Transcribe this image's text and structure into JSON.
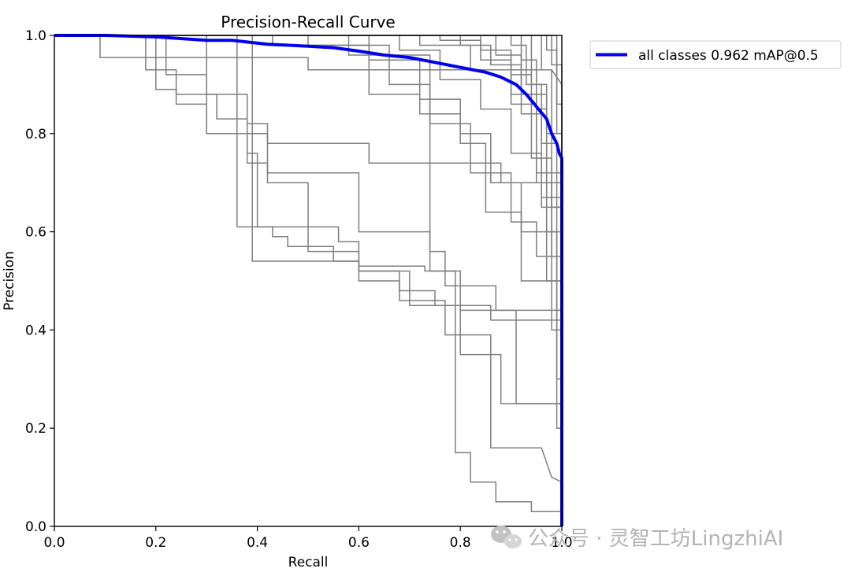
{
  "chart_data": {
    "type": "line",
    "title": "Precision-Recall Curve",
    "xlabel": "Recall",
    "ylabel": "Precision",
    "xlim": [
      0,
      1
    ],
    "ylim": [
      0,
      1
    ],
    "xticks": [
      "0.0",
      "0.2",
      "0.4",
      "0.6",
      "0.8",
      "1.0"
    ],
    "yticks": [
      "0.0",
      "0.2",
      "0.4",
      "0.6",
      "0.8",
      "1.0"
    ],
    "grid": false,
    "legend_position": "outside-top-right",
    "series": [
      {
        "name": "all classes 0.962 mAP@0.5",
        "color": "#0000ee",
        "x": [
          0,
          0.1,
          0.2,
          0.3,
          0.35,
          0.42,
          0.5,
          0.55,
          0.6,
          0.65,
          0.7,
          0.75,
          0.8,
          0.85,
          0.88,
          0.91,
          0.93,
          0.95,
          0.97,
          0.98,
          0.99,
          0.995,
          1.0,
          1.0
        ],
        "y": [
          1.0,
          1.0,
          0.997,
          0.99,
          0.99,
          0.982,
          0.978,
          0.975,
          0.968,
          0.96,
          0.955,
          0.945,
          0.935,
          0.925,
          0.915,
          0.9,
          0.88,
          0.855,
          0.83,
          0.8,
          0.78,
          0.76,
          0.75,
          0.0
        ]
      }
    ],
    "class_curves": [
      {
        "color": "#7f7f7f",
        "x": [
          0,
          0.09,
          0.09,
          0.5,
          0.5,
          0.98,
          1.0,
          1.0
        ],
        "y": [
          1.0,
          1.0,
          0.955,
          0.955,
          0.93,
          0.93,
          0.9,
          0.0
        ]
      },
      {
        "color": "#7f7f7f",
        "x": [
          0,
          0.18,
          0.18,
          0.24,
          0.24,
          0.32,
          0.32,
          0.38,
          0.38,
          0.42,
          0.42,
          0.62,
          0.62,
          0.88,
          0.88,
          1.0,
          1.0
        ],
        "y": [
          1.0,
          1.0,
          0.93,
          0.93,
          0.88,
          0.88,
          0.83,
          0.83,
          0.8,
          0.8,
          0.78,
          0.78,
          0.74,
          0.74,
          0.7,
          0.7,
          0.0
        ]
      },
      {
        "color": "#7f7f7f",
        "x": [
          0,
          0.2,
          0.2,
          0.24,
          0.24,
          0.3,
          0.3,
          0.38,
          0.38,
          0.42,
          0.42,
          0.6,
          0.6,
          0.74,
          0.74,
          0.77,
          0.77,
          0.87,
          0.87,
          1.0,
          1.0
        ],
        "y": [
          1.0,
          1.0,
          0.89,
          0.89,
          0.86,
          0.86,
          0.8,
          0.8,
          0.74,
          0.74,
          0.72,
          0.72,
          0.6,
          0.6,
          0.56,
          0.56,
          0.49,
          0.49,
          0.44,
          0.44,
          0.0
        ]
      },
      {
        "color": "#7f7f7f",
        "x": [
          0,
          0.22,
          0.22,
          0.3,
          0.3,
          0.38,
          0.38,
          0.4,
          0.4,
          0.56,
          0.56,
          0.6,
          0.6,
          0.68,
          0.68,
          0.77,
          0.77,
          0.86,
          0.86,
          0.96,
          0.98,
          1.0,
          1.0
        ],
        "y": [
          1.0,
          1.0,
          0.92,
          0.92,
          0.8,
          0.8,
          0.76,
          0.76,
          0.61,
          0.61,
          0.58,
          0.58,
          0.5,
          0.5,
          0.46,
          0.46,
          0.39,
          0.39,
          0.16,
          0.16,
          0.1,
          0.09,
          0.0
        ]
      },
      {
        "color": "#7f7f7f",
        "x": [
          0,
          0.3,
          0.3,
          0.38,
          0.38,
          0.42,
          0.42,
          0.5,
          0.5,
          0.6,
          0.6,
          0.7,
          0.7,
          0.8,
          0.8,
          0.88,
          0.88,
          1.0,
          1.0
        ],
        "y": [
          1.0,
          1.0,
          0.88,
          0.88,
          0.82,
          0.82,
          0.7,
          0.7,
          0.56,
          0.56,
          0.52,
          0.52,
          0.45,
          0.45,
          0.35,
          0.35,
          0.25,
          0.25,
          0.0
        ]
      },
      {
        "color": "#7f7f7f",
        "x": [
          0,
          0.36,
          0.36,
          0.43,
          0.43,
          0.46,
          0.46,
          0.55,
          0.55,
          0.6,
          0.6,
          0.68,
          0.68,
          0.75,
          0.75,
          0.86,
          0.86,
          1.0,
          1.0
        ],
        "y": [
          1.0,
          1.0,
          0.61,
          0.61,
          0.59,
          0.59,
          0.57,
          0.57,
          0.54,
          0.54,
          0.52,
          0.52,
          0.48,
          0.48,
          0.45,
          0.45,
          0.42,
          0.42,
          0.0
        ]
      },
      {
        "color": "#7f7f7f",
        "x": [
          0,
          0.39,
          0.39,
          0.6,
          0.6,
          0.73,
          0.73,
          0.8,
          0.8,
          0.91,
          0.91,
          1.0,
          1.0
        ],
        "y": [
          1.0,
          1.0,
          0.54,
          0.54,
          0.53,
          0.53,
          0.52,
          0.52,
          0.44,
          0.44,
          0.25,
          0.25,
          0.0
        ]
      },
      {
        "color": "#7f7f7f",
        "x": [
          0,
          0.43,
          0.43,
          0.66,
          0.66,
          0.74,
          0.74,
          0.79,
          0.79,
          0.82,
          0.82,
          0.87,
          0.87,
          0.94,
          0.94,
          1.0,
          1.0
        ],
        "y": [
          1.0,
          1.0,
          0.98,
          0.98,
          0.96,
          0.96,
          0.52,
          0.52,
          0.15,
          0.15,
          0.09,
          0.09,
          0.05,
          0.05,
          0.03,
          0.03,
          0.0
        ]
      },
      {
        "color": "#7f7f7f",
        "x": [
          0,
          0.5,
          0.5,
          0.62,
          0.62,
          0.72,
          0.72,
          0.8,
          0.8,
          0.85,
          0.85,
          0.92,
          0.92,
          1.0,
          1.0
        ],
        "y": [
          1.0,
          1.0,
          0.98,
          0.98,
          0.88,
          0.88,
          0.84,
          0.84,
          0.78,
          0.78,
          0.64,
          0.64,
          0.5,
          0.5,
          0.0
        ]
      },
      {
        "color": "#7f7f7f",
        "x": [
          0,
          0.58,
          0.58,
          0.66,
          0.66,
          0.74,
          0.74,
          0.82,
          0.82,
          0.9,
          0.9,
          0.95,
          0.95,
          1.0,
          1.0
        ],
        "y": [
          1.0,
          1.0,
          0.96,
          0.96,
          0.9,
          0.9,
          0.82,
          0.82,
          0.72,
          0.72,
          0.62,
          0.62,
          0.55,
          0.55,
          0.0
        ]
      },
      {
        "color": "#7f7f7f",
        "x": [
          0,
          0.62,
          0.62,
          0.72,
          0.72,
          0.8,
          0.8,
          0.86,
          0.86,
          0.92,
          0.92,
          1.0,
          1.0
        ],
        "y": [
          1.0,
          1.0,
          0.95,
          0.95,
          0.87,
          0.87,
          0.8,
          0.8,
          0.7,
          0.7,
          0.6,
          0.6,
          0.0
        ]
      },
      {
        "color": "#7f7f7f",
        "x": [
          0,
          0.68,
          0.68,
          0.76,
          0.76,
          0.84,
          0.84,
          0.9,
          0.9,
          0.96,
          0.96,
          1.0,
          1.0
        ],
        "y": [
          1.0,
          1.0,
          0.97,
          0.97,
          0.91,
          0.91,
          0.85,
          0.85,
          0.76,
          0.76,
          0.67,
          0.67,
          0.0
        ]
      },
      {
        "color": "#7f7f7f",
        "x": [
          0,
          0.72,
          0.72,
          0.82,
          0.82,
          0.9,
          0.9,
          0.95,
          0.95,
          1.0,
          1.0
        ],
        "y": [
          1.0,
          1.0,
          0.98,
          0.98,
          0.93,
          0.93,
          0.86,
          0.86,
          0.72,
          0.72,
          0.0
        ]
      },
      {
        "color": "#7f7f7f",
        "x": [
          0,
          0.76,
          0.76,
          0.84,
          0.84,
          0.9,
          0.9,
          0.97,
          0.97,
          1.0,
          1.0
        ],
        "y": [
          1.0,
          1.0,
          0.99,
          0.99,
          0.95,
          0.95,
          0.88,
          0.88,
          0.8,
          0.8,
          0.0
        ]
      },
      {
        "color": "#7f7f7f",
        "x": [
          0,
          0.8,
          0.8,
          0.86,
          0.86,
          0.92,
          0.92,
          0.96,
          0.96,
          1.0,
          1.0
        ],
        "y": [
          1.0,
          1.0,
          0.98,
          0.98,
          0.94,
          0.94,
          0.84,
          0.84,
          0.65,
          0.65,
          0.0
        ]
      },
      {
        "color": "#7f7f7f",
        "x": [
          0,
          0.84,
          0.84,
          0.9,
          0.9,
          0.94,
          0.94,
          0.98,
          0.98,
          1.0,
          1.0
        ],
        "y": [
          1.0,
          1.0,
          0.97,
          0.97,
          0.92,
          0.92,
          0.75,
          0.75,
          0.55,
          0.55,
          0.0
        ]
      },
      {
        "color": "#7f7f7f",
        "x": [
          0,
          0.87,
          0.87,
          0.92,
          0.92,
          0.95,
          0.95,
          0.98,
          0.98,
          1.0,
          1.0
        ],
        "y": [
          1.0,
          1.0,
          0.96,
          0.96,
          0.88,
          0.88,
          0.7,
          0.7,
          0.4,
          0.4,
          0.0
        ]
      },
      {
        "color": "#7f7f7f",
        "x": [
          0,
          0.9,
          0.9,
          0.93,
          0.93,
          0.96,
          0.96,
          0.99,
          0.99,
          1.0,
          1.0
        ],
        "y": [
          1.0,
          1.0,
          0.98,
          0.98,
          0.9,
          0.9,
          0.78,
          0.78,
          0.3,
          0.3,
          0.0
        ]
      },
      {
        "color": "#7f7f7f",
        "x": [
          0,
          0.92,
          0.92,
          0.95,
          0.95,
          0.97,
          0.97,
          0.99,
          0.99,
          1.0,
          1.0
        ],
        "y": [
          1.0,
          1.0,
          0.95,
          0.95,
          0.85,
          0.85,
          0.6,
          0.6,
          0.2,
          0.2,
          0.0
        ]
      },
      {
        "color": "#7f7f7f",
        "x": [
          0,
          0.94,
          0.94,
          0.97,
          0.97,
          1.0,
          1.0
        ],
        "y": [
          1.0,
          1.0,
          0.9,
          0.9,
          0.5,
          0.5,
          0.0
        ]
      },
      {
        "color": "#7f7f7f",
        "x": [
          0,
          0.96,
          0.96,
          0.98,
          0.98,
          1.0,
          1.0
        ],
        "y": [
          1.0,
          1.0,
          0.93,
          0.93,
          0.65,
          0.65,
          0.0
        ]
      },
      {
        "color": "#7f7f7f",
        "x": [
          0,
          0.97,
          0.97,
          0.99,
          0.99,
          1.0,
          1.0
        ],
        "y": [
          1.0,
          1.0,
          0.97,
          0.97,
          0.8,
          0.8,
          0.0
        ]
      },
      {
        "color": "#7f7f7f",
        "x": [
          0,
          0.98,
          0.98,
          1.0,
          1.0
        ],
        "y": [
          1.0,
          1.0,
          0.94,
          0.94,
          0.0
        ]
      },
      {
        "color": "#7f7f7f",
        "x": [
          0,
          0.99,
          0.99,
          1.0,
          1.0
        ],
        "y": [
          1.0,
          1.0,
          0.86,
          0.86,
          0.0
        ]
      }
    ]
  },
  "watermark": {
    "text": "公众号 · 灵智工坊LingzhiAI",
    "icon": "wechat-icon"
  }
}
